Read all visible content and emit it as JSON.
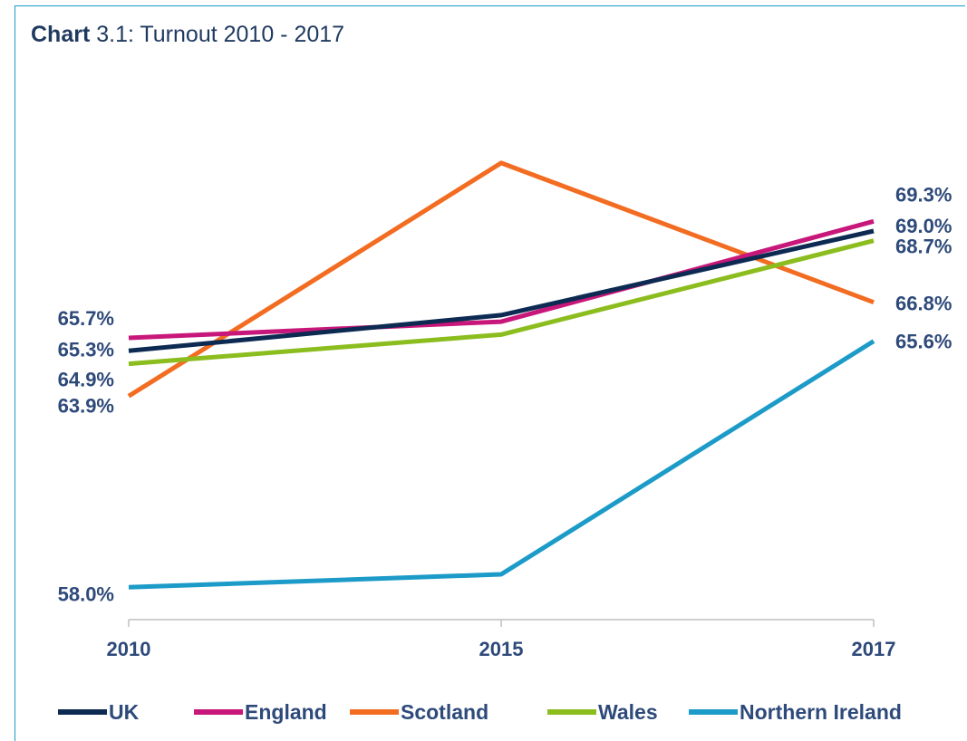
{
  "title": {
    "bold": "Chart",
    "rest": " 3.1: Turnout 2010 - 2017"
  },
  "chart_data": {
    "type": "line",
    "title": "Chart 3.1: Turnout 2010 - 2017",
    "x": [
      "2010",
      "2015",
      "2017"
    ],
    "xlabel": "",
    "ylabel": "",
    "ylim": [
      57.0,
      73.0
    ],
    "grid": false,
    "legend_position": "bottom",
    "series": [
      {
        "name": "UK",
        "color": "#0d2b52",
        "values": [
          65.3,
          66.4,
          69.0
        ],
        "labels": [
          "65.3%",
          "",
          "69.0%"
        ]
      },
      {
        "name": "England",
        "color": "#c8177a",
        "values": [
          65.7,
          66.2,
          69.3
        ],
        "labels": [
          "65.7%",
          "",
          "69.3%"
        ]
      },
      {
        "name": "Scotland",
        "color": "#f26c21",
        "values": [
          63.9,
          71.1,
          66.8
        ],
        "labels": [
          "63.9%",
          "",
          "66.8%"
        ]
      },
      {
        "name": "Wales",
        "color": "#8cbd1f",
        "values": [
          64.9,
          65.8,
          68.7
        ],
        "labels": [
          "64.9%",
          "",
          "68.7%"
        ]
      },
      {
        "name": "Northern Ireland",
        "color": "#1c9bc8",
        "values": [
          58.0,
          58.4,
          65.6
        ],
        "labels": [
          "58.0%",
          "",
          "65.6%"
        ]
      }
    ]
  }
}
